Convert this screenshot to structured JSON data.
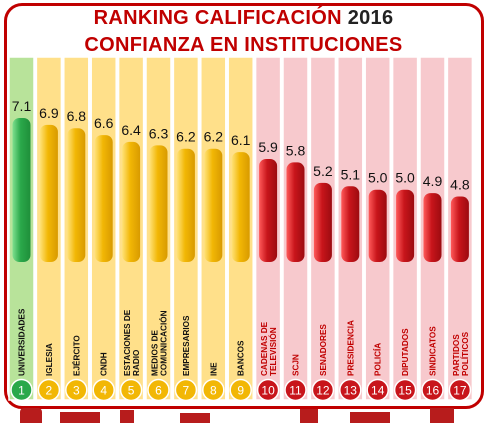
{
  "header": {
    "title_main": "RANKING CALIFICACIÓN",
    "title_year": "2016",
    "subtitle": "CONFIANZA EN INSTITUCIONES"
  },
  "colors": {
    "green": "#2aa84a",
    "green_bg": "#b8e39a",
    "yellow": "#f2b705",
    "yellow_bg": "#ffe08a",
    "red": "#c8151b",
    "red_bg": "#f7c9cd",
    "frame": "#c00000"
  },
  "chart_data": {
    "type": "bar",
    "title": "CONFIANZA EN INSTITUCIONES",
    "categories": [
      "Universidades",
      "Iglesia",
      "Ejército",
      "CNDH",
      "Estaciones de Radio",
      "Medios de Comunicación",
      "Empresarios",
      "INE",
      "Bancos",
      "Cadenas de Televisión",
      "SCJN",
      "Senadores",
      "Presidencia",
      "Policía",
      "Diputados",
      "Sindicatos",
      "Partidos Políticos"
    ],
    "labels": [
      "UNIVERSIDADES",
      "IGLESIA",
      "EJÉRCITO",
      "CNDH",
      "ESTACIONES DE|RADIO",
      "MEDIOS DE|COMUNICACIÓN",
      "EMPRESARIOS",
      "INE",
      "BANCOS",
      "CADENAS DE|TELEVISIÓN",
      "SCJN",
      "SENADORES",
      "PRESIDENCIA",
      "POLICÍA",
      "DIPUTADOS",
      "SINDICATOS",
      "PARTIDOS|POLÍTICOS"
    ],
    "values": [
      7.1,
      6.9,
      6.8,
      6.6,
      6.4,
      6.3,
      6.2,
      6.2,
      6.1,
      5.9,
      5.8,
      5.2,
      5.1,
      5.0,
      5.0,
      4.9,
      4.8
    ],
    "value_labels": [
      "7.1",
      "6.9",
      "6.8",
      "6.6",
      "6.4",
      "6.3",
      "6.2",
      "6.2",
      "6.1",
      "5.9",
      "5.8",
      "5.2",
      "5.1",
      "5.0",
      "5.0",
      "4.9",
      "4.8"
    ],
    "ranks": [
      "1",
      "2",
      "3",
      "4",
      "5",
      "6",
      "7",
      "8",
      "9",
      "10",
      "11",
      "12",
      "13",
      "14",
      "15",
      "16",
      "17"
    ],
    "groups": [
      "green",
      "yellow",
      "yellow",
      "yellow",
      "yellow",
      "yellow",
      "yellow",
      "yellow",
      "yellow",
      "red",
      "red",
      "red",
      "red",
      "red",
      "red",
      "red",
      "red"
    ]
  }
}
